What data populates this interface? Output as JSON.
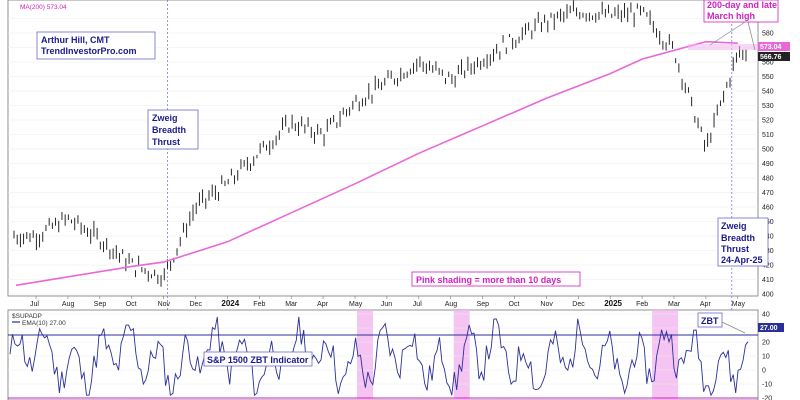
{
  "chart_data": [
    {
      "type": "bar",
      "series": [
        {
          "name": "MA(200)",
          "value_label": "573.04"
        }
      ],
      "last_value": "566.76",
      "ma_value": "573.04",
      "ylim": [
        400,
        600
      ],
      "y_ticks": [
        400,
        410,
        420,
        430,
        440,
        450,
        460,
        470,
        480,
        490,
        500,
        510,
        520,
        530,
        540,
        550,
        560,
        570,
        580,
        590
      ],
      "price_points": [
        {
          "x": "Jul",
          "y": 440
        },
        {
          "x": "Aug",
          "y": 452
        },
        {
          "x": "Sep",
          "y": 438
        },
        {
          "x": "Oct",
          "y": 420
        },
        {
          "x": "Nov",
          "y": 412
        },
        {
          "x": "Dec",
          "y": 460
        },
        {
          "x": "2024",
          "y": 476
        },
        {
          "x": "Feb",
          "y": 498
        },
        {
          "x": "Mar",
          "y": 518
        },
        {
          "x": "Apr",
          "y": 510
        },
        {
          "x": "May",
          "y": 532
        },
        {
          "x": "Jun",
          "y": 546
        },
        {
          "x": "Jul",
          "y": 560
        },
        {
          "x": "Aug",
          "y": 548
        },
        {
          "x": "Sep",
          "y": 562
        },
        {
          "x": "Oct",
          "y": 576
        },
        {
          "x": "Nov",
          "y": 588
        },
        {
          "x": "Dec",
          "y": 595
        },
        {
          "x": "2025",
          "y": 592
        },
        {
          "x": "Feb",
          "y": 594
        },
        {
          "x": "Mar",
          "y": 568
        },
        {
          "x": "Apr",
          "y": 500
        },
        {
          "x": "May",
          "y": 566
        }
      ],
      "ma_points": [
        {
          "x": "Jul",
          "y": 406
        },
        {
          "x": "Oct",
          "y": 419
        },
        {
          "x": "Nov",
          "y": 422
        },
        {
          "x": "2024",
          "y": 436
        },
        {
          "x": "Mar",
          "y": 456
        },
        {
          "x": "May",
          "y": 476
        },
        {
          "x": "Jul",
          "y": 497
        },
        {
          "x": "Sep",
          "y": 516
        },
        {
          "x": "Nov",
          "y": 535
        },
        {
          "x": "2025",
          "y": 552
        },
        {
          "x": "Feb",
          "y": 562
        },
        {
          "x": "Apr",
          "y": 574
        },
        {
          "x": "May",
          "y": 573
        }
      ]
    },
    {
      "type": "line",
      "series": [
        {
          "name": "EMA(10)",
          "value_label": "27.00"
        }
      ],
      "last_value": "27.00",
      "ylim": [
        -20,
        40
      ],
      "y_ticks": [
        -20,
        -10,
        0,
        10,
        20,
        30,
        40
      ],
      "threshold_lines": [
        25,
        -20
      ],
      "shaded_periods": [
        "Jun 2024",
        "Aug 2024",
        "Mar 2025"
      ]
    }
  ],
  "x_axis": {
    "labels": [
      "Jul",
      "Aug",
      "Sep",
      "Oct",
      "Nov",
      "Dec",
      "2024",
      "Feb",
      "Mar",
      "Apr",
      "May",
      "Jun",
      "Jul",
      "Aug",
      "Sep",
      "Oct",
      "Nov",
      "Dec",
      "2025",
      "Feb",
      "Mar",
      "Apr",
      "May"
    ],
    "bold_labels": [
      "2024",
      "2025"
    ]
  },
  "header": {
    "line1": "MA(200) 573.04"
  },
  "lower_header": {
    "symbol": "$SUPADP",
    "ema_label": "EMA(10) 27.00"
  },
  "annotations": {
    "author_name": "Arthur Hill, CMT",
    "author_site": "TrendInvestorPro.com",
    "zbt1_l1": "Zweig",
    "zbt1_l2": "Breadth",
    "zbt1_l3": "Thrust",
    "zbt2_l1": "Zweig",
    "zbt2_l2": "Breadth",
    "zbt2_l3": "Thrust",
    "zbt2_l4": "24-Apr-25",
    "ma_note_l1": "200-day and late",
    "ma_note_l2": "March high",
    "pink_note": "Pink shading = more than 10 days",
    "indicator_label": "S&P 1500 ZBT Indicator",
    "zbt_tag": "ZBT"
  },
  "colors": {
    "price": "#111111",
    "ma": "#e868d8",
    "ema": "#2b2f9a",
    "shade": "#f4b5ef",
    "accent_text": "#1a1a8c",
    "magenta": "#d020c0"
  }
}
